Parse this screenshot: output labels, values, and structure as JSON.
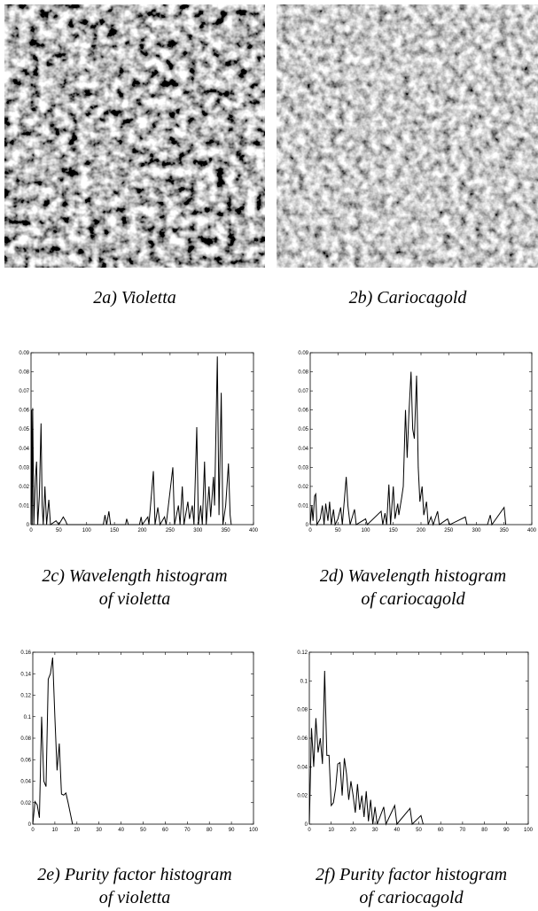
{
  "images": [
    {
      "caption": "2a) Violetta"
    },
    {
      "caption": "2b) Cariocagold"
    }
  ],
  "chart_data": [
    {
      "type": "line",
      "caption": [
        "2c) Wavelength histogram",
        "of violetta"
      ],
      "color": "#000000",
      "xlim": [
        0,
        400
      ],
      "xticks": [
        0,
        50,
        100,
        150,
        200,
        250,
        300,
        350,
        400
      ],
      "ylim": [
        0,
        0.09
      ],
      "yticks": [
        0,
        0.01,
        0.02,
        0.03,
        0.04,
        0.05,
        0.06,
        0.07,
        0.08,
        0.09
      ],
      "x": [
        0,
        1,
        2,
        3,
        5,
        8,
        10,
        12,
        15,
        18,
        20,
        22,
        25,
        28,
        32,
        35,
        45,
        50,
        58,
        62,
        65,
        130,
        133,
        136,
        140,
        143,
        170,
        172,
        175,
        195,
        198,
        200,
        210,
        212,
        220,
        223,
        228,
        232,
        240,
        243,
        255,
        258,
        265,
        268,
        272,
        275,
        282,
        285,
        290,
        293,
        298,
        301,
        305,
        308,
        312,
        315,
        320,
        323,
        328,
        330,
        335,
        338,
        342,
        345,
        350,
        355,
        358,
        360
      ],
      "values": [
        0,
        0.06,
        0,
        0.061,
        0,
        0.025,
        0.033,
        0,
        0.015,
        0.053,
        0.01,
        0,
        0.02,
        0,
        0.013,
        0,
        0.002,
        0,
        0.004,
        0.002,
        0,
        0,
        0.005,
        0,
        0.007,
        0,
        0,
        0.003,
        0,
        0,
        0.004,
        0,
        0.004,
        0,
        0.028,
        0,
        0.009,
        0,
        0.004,
        0,
        0.03,
        0,
        0.01,
        0,
        0.02,
        0,
        0.012,
        0.003,
        0.01,
        0,
        0.051,
        0,
        0.01,
        0,
        0.033,
        0,
        0.02,
        0.004,
        0.025,
        0.01,
        0.088,
        0.005,
        0.069,
        0,
        0.01,
        0.032,
        0.005,
        0
      ]
    },
    {
      "type": "line",
      "caption": [
        "2d) Wavelength histogram",
        "of cariocagold"
      ],
      "color": "#000000",
      "xlim": [
        0,
        400
      ],
      "xticks": [
        0,
        50,
        100,
        150,
        200,
        250,
        300,
        350,
        400
      ],
      "ylim": [
        0,
        0.09
      ],
      "yticks": [
        0,
        0.01,
        0.02,
        0.03,
        0.04,
        0.05,
        0.06,
        0.07,
        0.08,
        0.09
      ],
      "x": [
        0,
        3,
        5,
        8,
        10,
        12,
        18,
        22,
        25,
        28,
        32,
        35,
        38,
        42,
        45,
        50,
        55,
        58,
        65,
        68,
        72,
        80,
        83,
        100,
        103,
        128,
        131,
        135,
        138,
        142,
        145,
        150,
        153,
        158,
        160,
        165,
        168,
        172,
        175,
        178,
        182,
        185,
        188,
        192,
        195,
        198,
        202,
        205,
        210,
        213,
        218,
        222,
        230,
        233,
        248,
        252,
        280,
        283,
        320,
        325,
        328,
        350,
        353
      ],
      "values": [
        0,
        0.01,
        0.002,
        0.015,
        0.016,
        0,
        0.003,
        0.01,
        0,
        0.011,
        0.002,
        0.012,
        0,
        0.008,
        0,
        0.003,
        0.009,
        0,
        0.025,
        0.01,
        0,
        0.008,
        0,
        0.003,
        0,
        0.007,
        0,
        0.006,
        0,
        0.021,
        0,
        0.02,
        0.003,
        0.011,
        0.005,
        0.014,
        0.02,
        0.06,
        0.035,
        0.057,
        0.08,
        0.05,
        0.045,
        0.078,
        0.03,
        0.012,
        0.02,
        0.005,
        0.012,
        0,
        0.004,
        0,
        0.007,
        0,
        0.003,
        0,
        0.004,
        0,
        0,
        0.005,
        0,
        0.009,
        0
      ]
    },
    {
      "type": "line",
      "caption": [
        "2e) Purity factor histogram",
        "of violetta"
      ],
      "color": "#000000",
      "xlim": [
        0,
        100
      ],
      "xticks": [
        0,
        10,
        20,
        30,
        40,
        50,
        60,
        70,
        80,
        90,
        100
      ],
      "ylim": [
        0,
        0.16
      ],
      "yticks": [
        0,
        0.02,
        0.04,
        0.06,
        0.08,
        0.1,
        0.12,
        0.14,
        0.16
      ],
      "x": [
        0,
        1,
        2,
        3,
        4,
        5,
        6,
        7,
        8,
        9,
        10,
        11,
        12,
        13,
        14,
        15,
        16,
        17,
        18
      ],
      "values": [
        0,
        0.021,
        0.018,
        0.006,
        0.1,
        0.04,
        0.035,
        0.135,
        0.14,
        0.155,
        0.1,
        0.05,
        0.075,
        0.028,
        0.027,
        0.029,
        0.02,
        0.01,
        0
      ]
    },
    {
      "type": "line",
      "caption": [
        "2f) Purity factor histogram",
        "of cariocagold"
      ],
      "color": "#000000",
      "xlim": [
        0,
        100
      ],
      "xticks": [
        0,
        10,
        20,
        30,
        40,
        50,
        60,
        70,
        80,
        90,
        100
      ],
      "ylim": [
        0,
        0.12
      ],
      "yticks": [
        0,
        0.02,
        0.04,
        0.06,
        0.08,
        0.1,
        0.12
      ],
      "x": [
        0,
        1,
        2,
        3,
        4,
        5,
        6,
        7,
        8,
        9,
        10,
        11,
        12,
        13,
        14,
        15,
        16,
        17,
        18,
        19,
        20,
        21,
        22,
        23,
        24,
        25,
        26,
        27,
        28,
        29,
        30,
        31,
        34,
        35,
        39,
        40,
        46,
        47,
        51,
        52
      ],
      "values": [
        0,
        0.067,
        0.04,
        0.074,
        0.05,
        0.06,
        0.042,
        0.107,
        0.048,
        0.048,
        0.013,
        0.015,
        0.025,
        0.042,
        0.043,
        0.02,
        0.046,
        0.035,
        0.017,
        0.03,
        0.02,
        0.008,
        0.028,
        0.01,
        0.02,
        0.005,
        0.023,
        0.002,
        0.017,
        0,
        0.012,
        0,
        0.012,
        0,
        0.013,
        0,
        0.011,
        0,
        0.006,
        0
      ]
    }
  ]
}
